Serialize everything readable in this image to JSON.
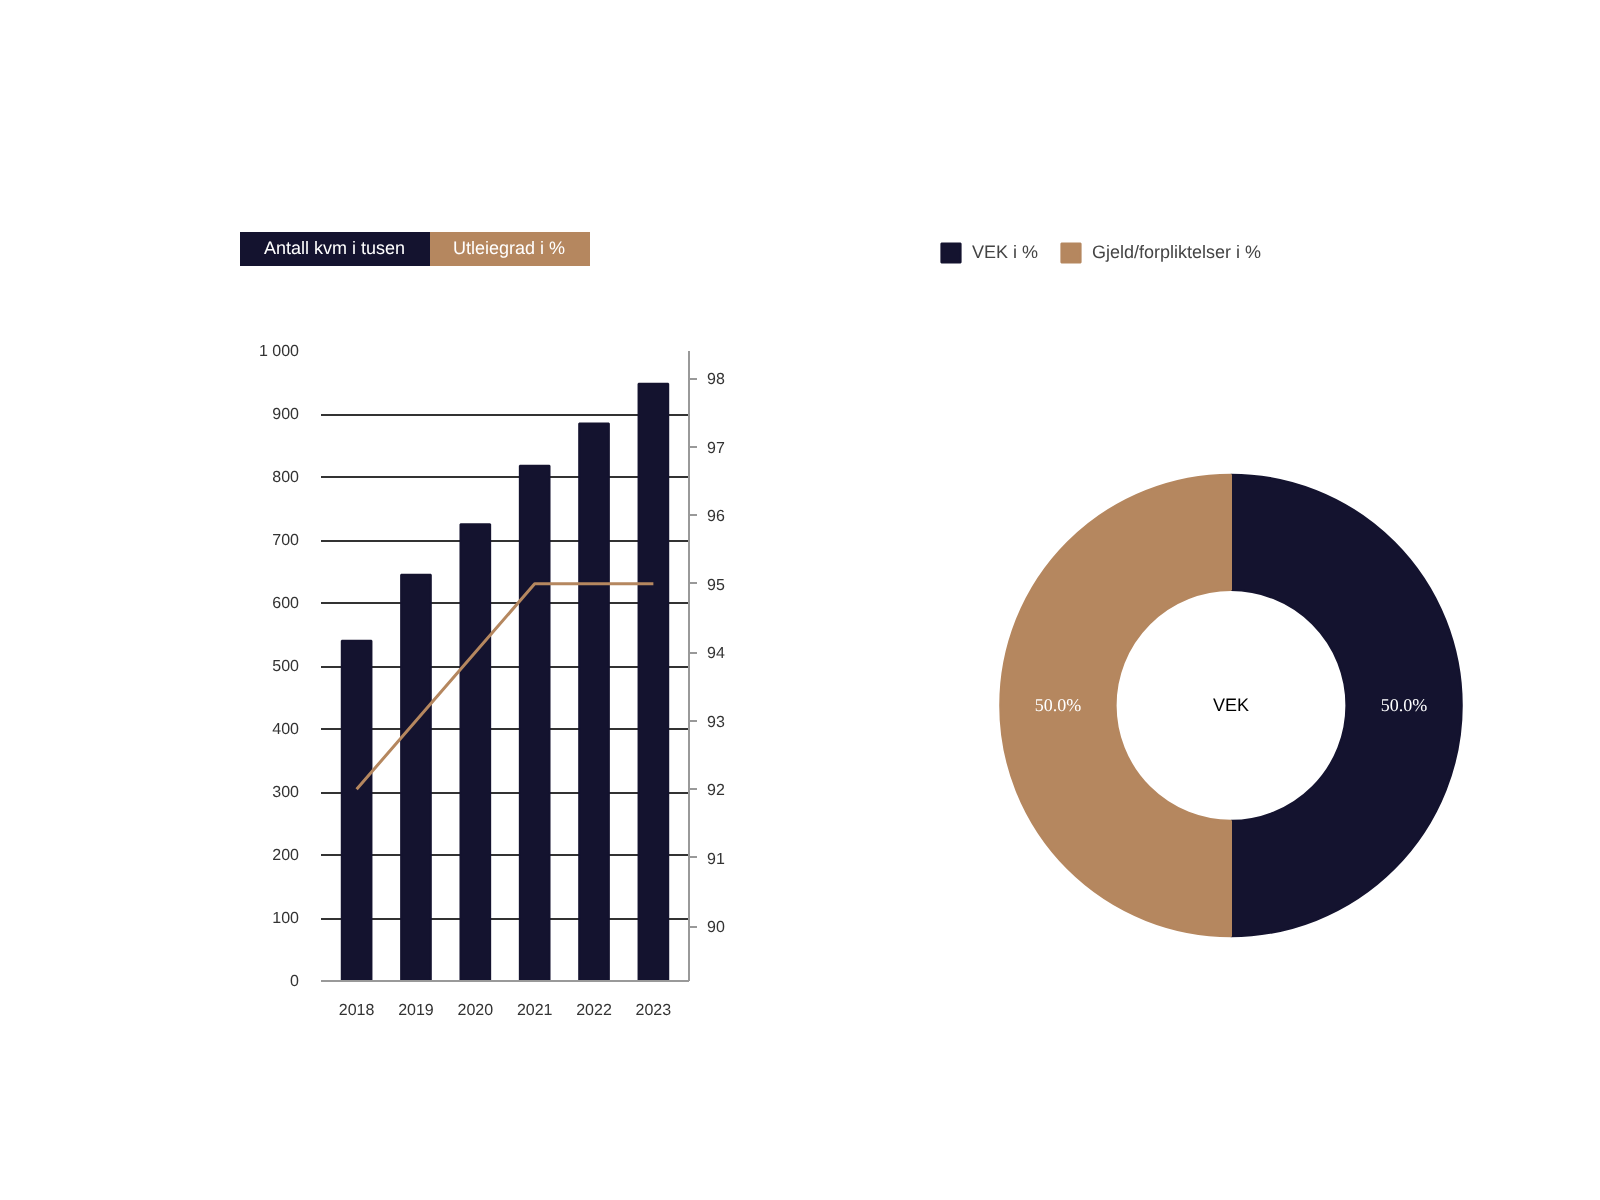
{
  "chart_data": [
    {
      "type": "bar",
      "categories": [
        "2018",
        "2019",
        "2020",
        "2021",
        "2022",
        "2023"
      ],
      "series": [
        {
          "name": "Antall kvm i tusen",
          "color": "#14132f",
          "values": [
            540,
            645,
            725,
            818,
            885,
            948
          ]
        },
        {
          "name": "Utleiegrad i %",
          "type": "line",
          "axis": "y2",
          "color": "#b5875f",
          "values": [
            92,
            93,
            94,
            95,
            95,
            95
          ]
        }
      ],
      "ylim": [
        0,
        1000
      ],
      "yticks": [
        0,
        100,
        200,
        300,
        400,
        500,
        600,
        700,
        800,
        900,
        {
          "value": 1000,
          "label": "1 000"
        }
      ],
      "y2lim": [
        89.2,
        98.4
      ],
      "y2ticks": [
        90,
        91,
        92,
        93,
        94,
        95,
        96,
        97,
        98
      ],
      "grid": "y",
      "legend": "top left",
      "marker": "none",
      "line_style": "solid"
    },
    {
      "type": "donut",
      "categories": [
        "VEK i %",
        "Gjeld/forpliktelser i %"
      ],
      "values": [
        50,
        50
      ],
      "colors": [
        "#14132f",
        "#b5875f"
      ],
      "value_labels": [
        "50.0%",
        "50.0%"
      ],
      "annotations": [
        "VEK"
      ],
      "legend": "top left"
    }
  ]
}
